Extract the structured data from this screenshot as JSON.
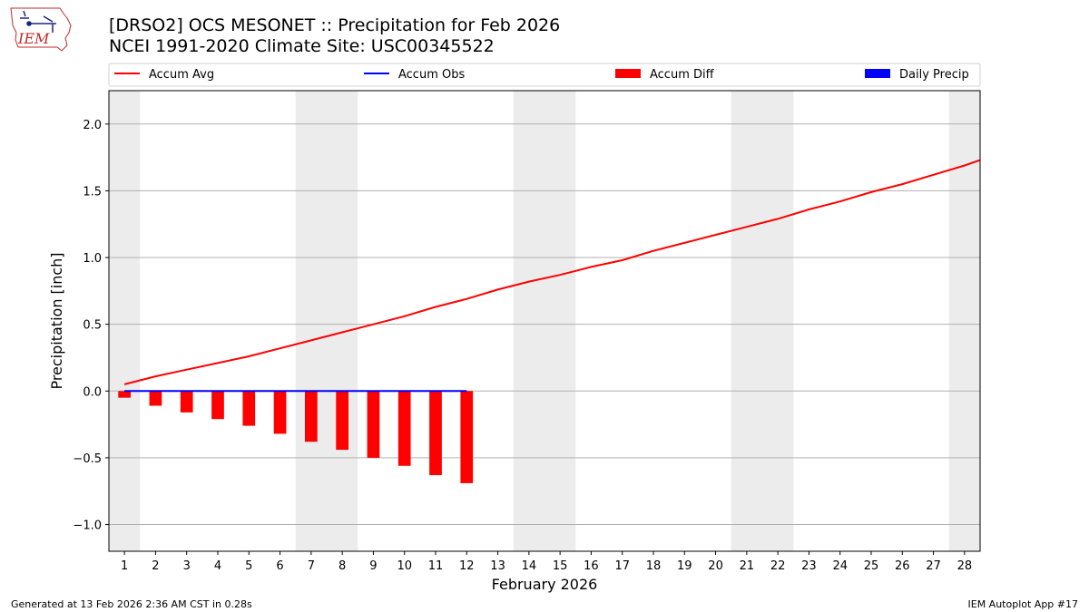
{
  "header": {
    "title_line1": "[DRSO2] OCS MESONET :: Precipitation for Feb 2026",
    "title_line2": "NCEI 1991-2020 Climate Site: USC00345522",
    "logo_text": "IEM"
  },
  "footer": {
    "left": "Generated at 13 Feb 2026 2:36 AM CST in 0.28s",
    "right": "IEM Autoplot App #17"
  },
  "chart_data": {
    "type": "bar",
    "xlabel": "February 2026",
    "ylabel": "Precipitation [inch]",
    "xlim": [
      0.5,
      28.5
    ],
    "ylim": [
      -1.2,
      2.25
    ],
    "yticks": [
      -1.0,
      -0.5,
      0.0,
      0.5,
      1.0,
      1.5,
      2.0
    ],
    "ytick_labels": [
      "−1.0",
      "−0.5",
      "0.0",
      "0.5",
      "1.0",
      "1.5",
      "2.0"
    ],
    "xticks": [
      1,
      2,
      3,
      4,
      5,
      6,
      7,
      8,
      9,
      10,
      11,
      12,
      13,
      14,
      15,
      16,
      17,
      18,
      19,
      20,
      21,
      22,
      23,
      24,
      25,
      26,
      27,
      28
    ],
    "grid": "horizontal",
    "weekend_shading": [
      [
        0.5,
        1.5
      ],
      [
        6.5,
        8.5
      ],
      [
        13.5,
        15.5
      ],
      [
        20.5,
        22.5
      ],
      [
        27.5,
        28.5
      ]
    ],
    "legend": [
      "Accum Avg",
      "Accum Obs",
      "Accum Diff",
      "Daily Precip"
    ],
    "legend_placement": "top, above plot",
    "series": [
      {
        "name": "Accum Avg",
        "kind": "line",
        "color": "#ff0000",
        "x": [
          1,
          2,
          3,
          4,
          5,
          6,
          7,
          8,
          9,
          10,
          11,
          12,
          13,
          14,
          15,
          16,
          17,
          18,
          19,
          20,
          21,
          22,
          23,
          24,
          25,
          26,
          27,
          28,
          28.5
        ],
        "values": [
          0.05,
          0.11,
          0.16,
          0.21,
          0.26,
          0.32,
          0.38,
          0.44,
          0.5,
          0.56,
          0.63,
          0.69,
          0.76,
          0.82,
          0.87,
          0.93,
          0.98,
          1.05,
          1.11,
          1.17,
          1.23,
          1.29,
          1.36,
          1.42,
          1.49,
          1.55,
          1.62,
          1.69,
          1.73
        ]
      },
      {
        "name": "Accum Obs",
        "kind": "line",
        "color": "#0000ff",
        "x": [
          1,
          2,
          3,
          4,
          5,
          6,
          7,
          8,
          9,
          10,
          11,
          12
        ],
        "values": [
          0,
          0,
          0,
          0,
          0,
          0,
          0,
          0,
          0,
          0,
          0,
          0
        ]
      },
      {
        "name": "Accum Diff",
        "kind": "bar",
        "color": "#ff0000",
        "x": [
          1,
          2,
          3,
          4,
          5,
          6,
          7,
          8,
          9,
          10,
          11,
          12
        ],
        "values": [
          -0.05,
          -0.11,
          -0.16,
          -0.21,
          -0.26,
          -0.32,
          -0.38,
          -0.44,
          -0.5,
          -0.56,
          -0.63,
          -0.69
        ]
      },
      {
        "name": "Daily Precip",
        "kind": "bar",
        "color": "#0000ff",
        "x": [
          1,
          2,
          3,
          4,
          5,
          6,
          7,
          8,
          9,
          10,
          11,
          12
        ],
        "values": [
          0,
          0,
          0,
          0,
          0,
          0,
          0,
          0,
          0,
          0,
          0,
          0
        ]
      }
    ]
  }
}
